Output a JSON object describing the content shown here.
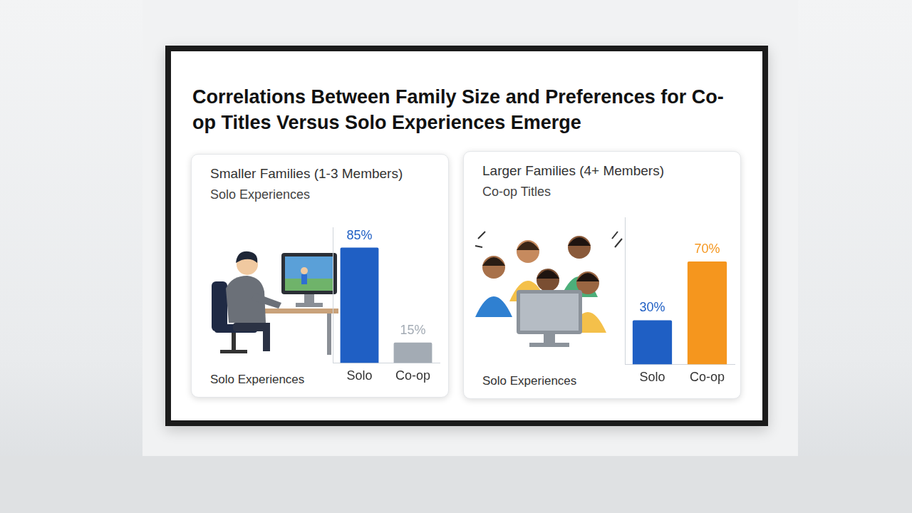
{
  "title": "Correlations Between Family Size and Preferences for Co-op Titles Versus Solo Experiences Emerge",
  "chart_data": [
    {
      "type": "bar",
      "title": "Smaller Families (1-3 Members)",
      "subtitle": "Solo Experiences",
      "xlabel": "Solo Experiences",
      "categories": [
        "Solo",
        "Co-op"
      ],
      "values": [
        85,
        15
      ],
      "value_labels": [
        "85%",
        "15%"
      ],
      "colors": [
        "#1f5fc4",
        "#a3abb4"
      ],
      "data_labels": true,
      "ylim": [
        0,
        100
      ],
      "tick_labels": "x",
      "grid": false
    },
    {
      "type": "bar",
      "title": "Larger Families (4+ Members)",
      "subtitle": "Co-op Titles",
      "xlabel": "Solo Experiences",
      "categories": [
        "Solo",
        "Co-op"
      ],
      "values": [
        30,
        70
      ],
      "value_labels": [
        "30%",
        "70%"
      ],
      "colors": [
        "#1f5fc4",
        "#f5961e"
      ],
      "data_labels": true,
      "ylim": [
        0,
        100
      ],
      "tick_labels": "x",
      "grid": false
    }
  ]
}
